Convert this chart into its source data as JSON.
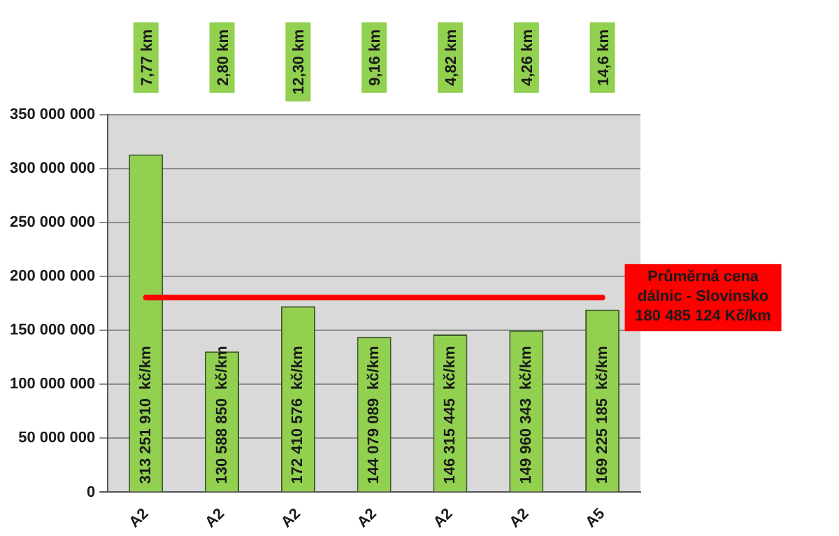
{
  "chart_data": {
    "type": "bar",
    "categories": [
      "A2",
      "A2",
      "A2",
      "A2",
      "A2",
      "A2",
      "A5"
    ],
    "values": [
      313251910,
      130588850,
      172410576,
      144079089,
      146315445,
      149960343,
      169225185
    ],
    "color": "#92d050",
    "value_labels": [
      "313 251 910  kč/km",
      "130 588 850  kč/km",
      "172 410 576  kč/km",
      "144 079 089  kč/km",
      "146 315 445  kč/km",
      "149 960 343  kč/km",
      "169 225 185  kč/km"
    ],
    "annotations": [
      "7,77 km",
      "2,80 km",
      "12,30 km",
      "9,16 km",
      "4,82 km",
      "4,26 km",
      "14,6 km"
    ],
    "ref_lines": [
      {
        "axis": "y",
        "value": 180485124,
        "label": "Průměrná cena dálnic - Slovinsko 180 485 124 Kč/km",
        "color": "#ff0000"
      }
    ],
    "ylim": [
      0,
      350000000
    ],
    "yticks": [
      0,
      50000000,
      100000000,
      150000000,
      200000000,
      250000000,
      300000000,
      350000000
    ],
    "grid": "y",
    "legend": false
  }
}
